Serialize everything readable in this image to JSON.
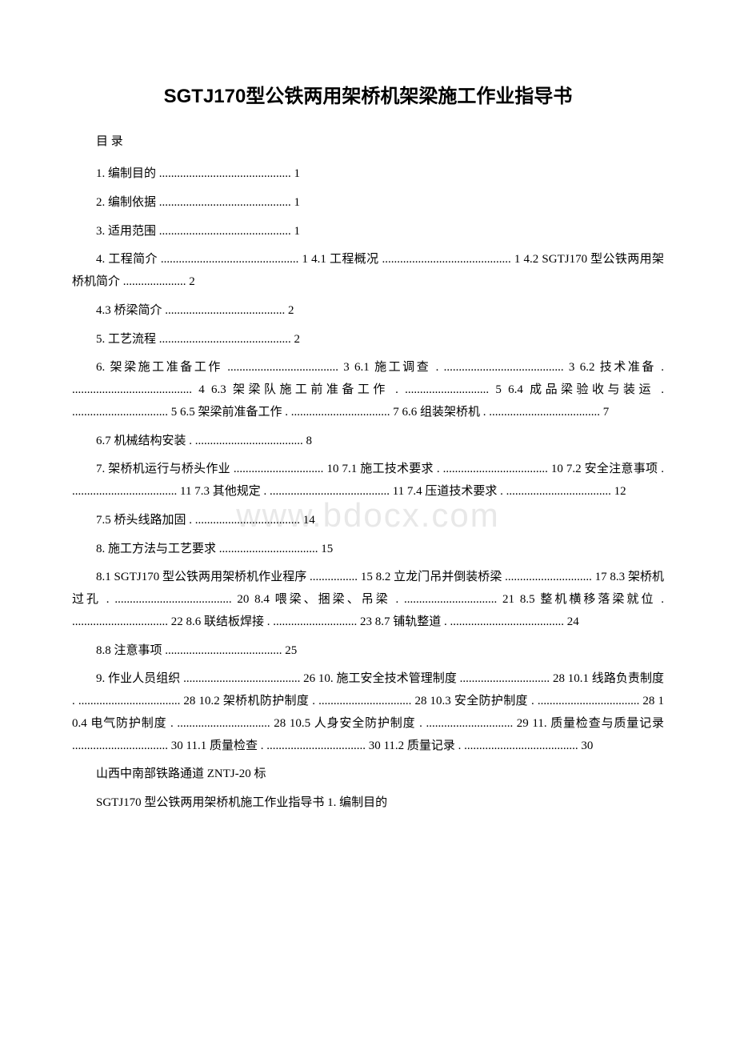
{
  "title": "SGTJ170型公铁两用架桥机架梁施工作业指导书",
  "toc_label": "目 录",
  "watermark": "www.bdocx.com",
  "entries": [
    "1. 编制目的 ............................................ 1",
    "2. 编制依据 ............................................ 1",
    "3. 适用范围 ............................................ 1",
    "4. 工程简介 .............................................. 1 4.1 工程概况 ........................................... 1 4.2 SGTJ170 型公铁两用架桥机简介 ..................... 2",
    "4.3 桥梁简介 ........................................ 2",
    "5. 工艺流程 ............................................ 2",
    "6. 架梁施工准备工作 ..................................... 3 6.1 施工调查 . ........................................ 3 6.2 技术准备 . ........................................ 4 6.3 架梁队施工前准备工作 . ............................ 5 6.4 成品梁验收与装运 . ................................ 5 6.5 架梁前准备工作 . ................................. 7 6.6 组装架桥机 . ..................................... 7",
    "6.7 机械结构安装 . .................................... 8",
    "7. 架桥机运行与桥头作业 .............................. 10 7.1 施工技术要求 . ................................... 10 7.2 安全注意事项 . ................................... 11 7.3 其他规定 . ........................................ 11 7.4 压道技术要求 . ................................... 12",
    "7.5 桥头线路加固 . ................................... 14",
    "8. 施工方法与工艺要求 ................................. 15",
    "8.1 SGTJ170 型公铁两用架桥机作业程序 ................ 15 8.2 立龙门吊并倒装桥梁 ............................. 17 8.3 架桥机过孔 . ....................................... 20 8.4 喂梁、捆梁、吊梁 . ............................... 21 8.5 整机横移落梁就位 . ................................ 22 8.6 联结板焊接 . ............................ 23 8.7 铺轨整道 . ...................................... 24",
    "8.8 注意事项 ....................................... 25",
    "9. 作业人员组织 ....................................... 26 10. 施工安全技术管理制度 .............................. 28 10.1 线路负责制度 . .................................. 28 10.2 架桥机防护制度 . ............................... 28 10.3 安全防护制度 . .................................. 28 10.4 电气防护制度 . ............................... 28 10.5 人身安全防护制度 . ............................. 29 11. 质量检查与质量记录 ................................ 30 11.1 质量检查 . ................................. 30 11.2 质量记录 . ...................................... 30"
  ],
  "body_lines": [
    "山西中南部铁路通道 ZNTJ-20 标",
    "SGTJ170 型公铁两用架桥机施工作业指导书 1. 编制目的"
  ],
  "colors": {
    "text": "#000000",
    "background": "#ffffff",
    "watermark": "#e8e8e8"
  },
  "typography": {
    "title_fontsize": 24,
    "body_fontsize": 15,
    "watermark_fontsize": 42,
    "line_height": 1.85
  }
}
